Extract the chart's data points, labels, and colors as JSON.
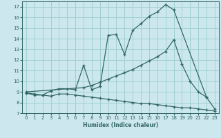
{
  "xlabel": "Humidex (Indice chaleur)",
  "bg_color": "#cce8ee",
  "line_color": "#336666",
  "grid_color": "#99cccc",
  "xlim": [
    -0.5,
    23.5
  ],
  "ylim": [
    7,
    17.5
  ],
  "yticks": [
    7,
    8,
    9,
    10,
    11,
    12,
    13,
    14,
    15,
    16,
    17
  ],
  "xticks": [
    0,
    1,
    2,
    3,
    4,
    5,
    6,
    7,
    8,
    9,
    10,
    11,
    12,
    13,
    14,
    15,
    16,
    17,
    18,
    19,
    20,
    21,
    22,
    23
  ],
  "line1_x": [
    0,
    1,
    2,
    3,
    4,
    5,
    6,
    7,
    8,
    9,
    10,
    11,
    12,
    13,
    14,
    15,
    16,
    17,
    18,
    22,
    23
  ],
  "line1_y": [
    8.9,
    8.8,
    8.7,
    9.1,
    9.3,
    9.3,
    9.2,
    11.5,
    9.2,
    9.5,
    14.3,
    14.4,
    12.5,
    14.8,
    15.4,
    16.1,
    16.5,
    17.2,
    16.7,
    8.5,
    7.4
  ],
  "line2_x": [
    0,
    7,
    8,
    9,
    10,
    11,
    12,
    13,
    14,
    15,
    16,
    17,
    18,
    19,
    20,
    21,
    22
  ],
  "line2_y": [
    9.0,
    9.4,
    9.6,
    9.9,
    10.2,
    10.5,
    10.8,
    11.1,
    11.5,
    11.9,
    12.3,
    12.8,
    13.9,
    11.6,
    10.0,
    9.0,
    8.5
  ],
  "line3_x": [
    0,
    1,
    2,
    3,
    4,
    5,
    6,
    7,
    8,
    9,
    10,
    11,
    12,
    13,
    14,
    15,
    16,
    17,
    18,
    19,
    20,
    21,
    22,
    23
  ],
  "line3_y": [
    8.9,
    8.7,
    8.7,
    8.6,
    8.8,
    8.8,
    8.7,
    8.6,
    8.5,
    8.4,
    8.3,
    8.2,
    8.1,
    8.0,
    7.9,
    7.9,
    7.8,
    7.7,
    7.6,
    7.5,
    7.5,
    7.4,
    7.3,
    7.2
  ]
}
